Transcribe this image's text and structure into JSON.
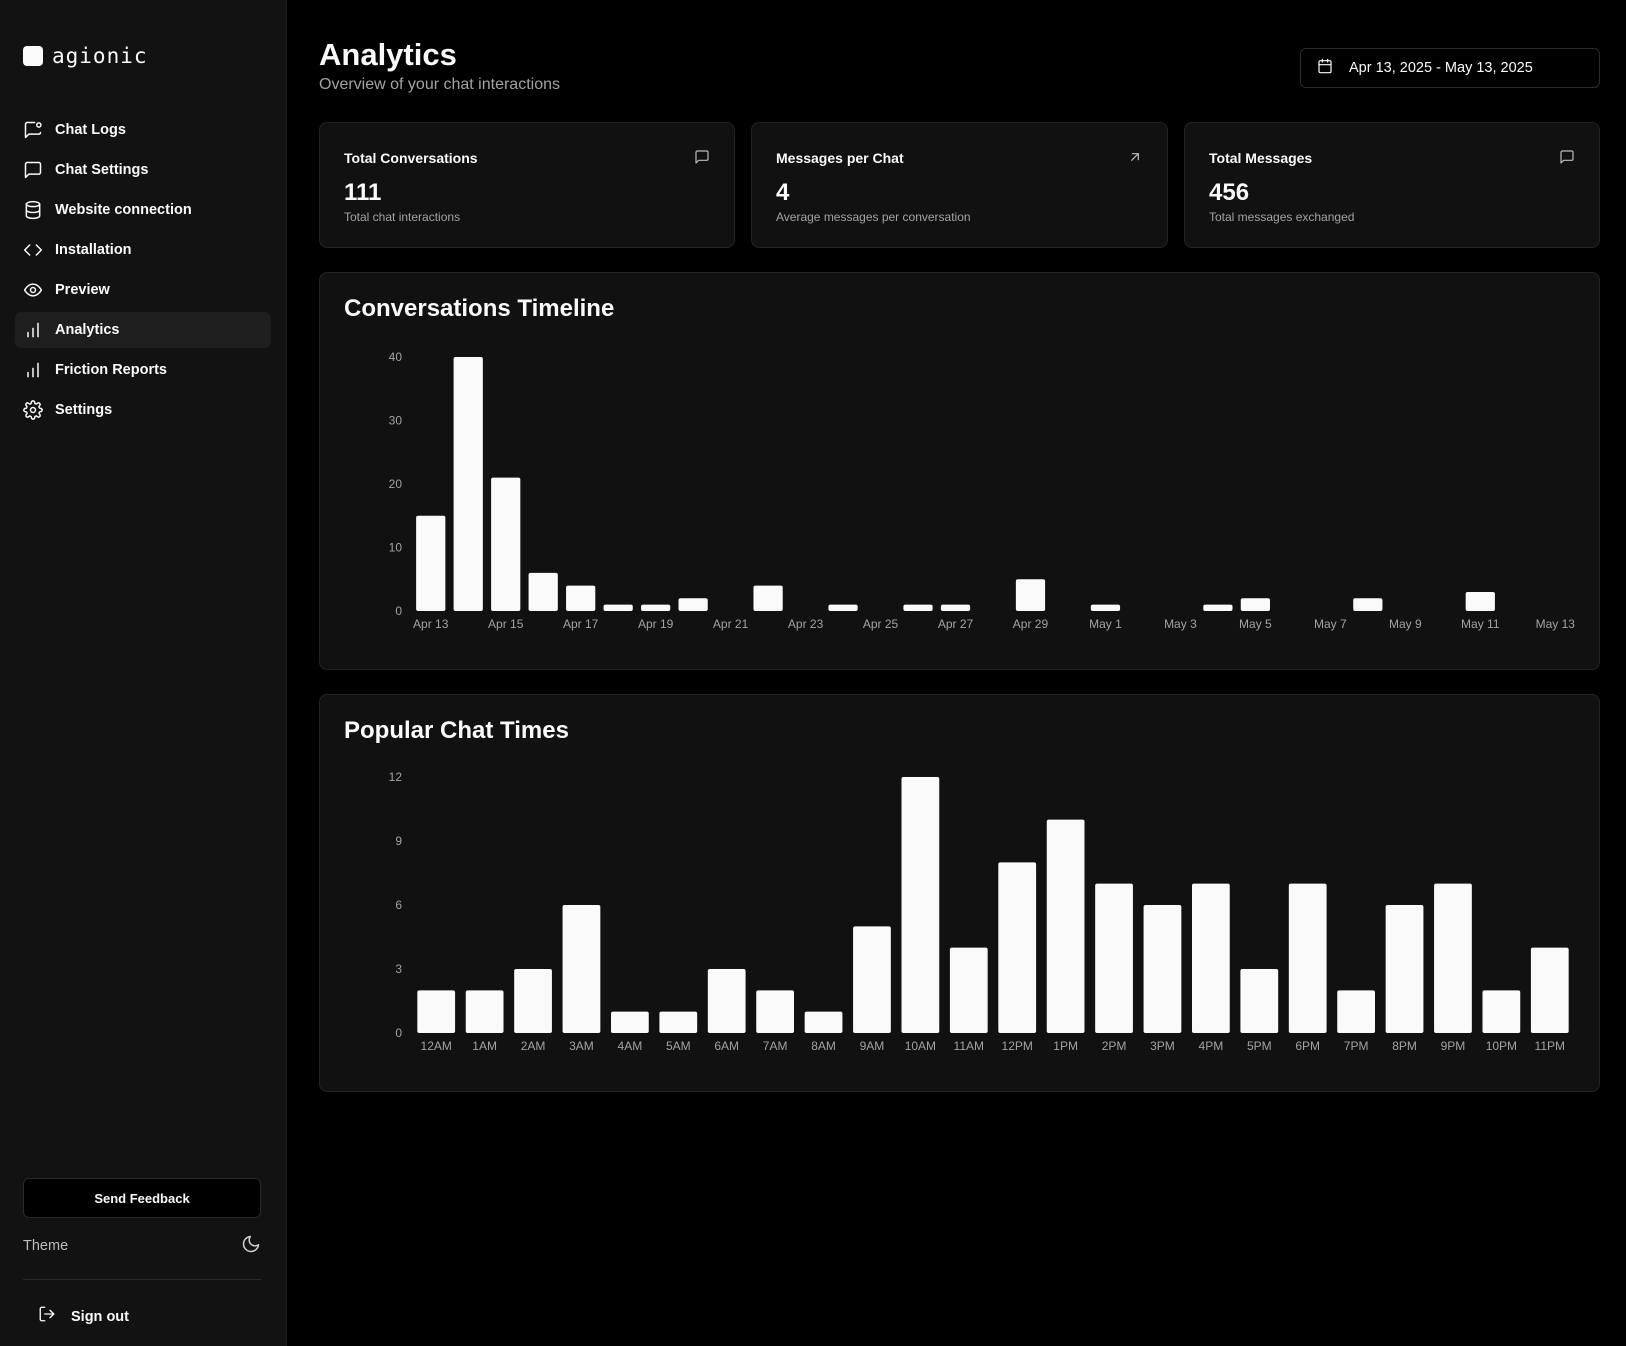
{
  "brand": {
    "name": "agionic"
  },
  "sidebar": {
    "items": [
      {
        "label": "Chat Logs",
        "icon": "chat-logs-icon",
        "active": false
      },
      {
        "label": "Chat Settings",
        "icon": "chat-settings-icon",
        "active": false
      },
      {
        "label": "Website connection",
        "icon": "database-icon",
        "active": false
      },
      {
        "label": "Installation",
        "icon": "code-icon",
        "active": false
      },
      {
        "label": "Preview",
        "icon": "eye-icon",
        "active": false
      },
      {
        "label": "Analytics",
        "icon": "bar-chart-icon",
        "active": true
      },
      {
        "label": "Friction Reports",
        "icon": "bar-chart-icon",
        "active": false
      },
      {
        "label": "Settings",
        "icon": "gear-icon",
        "active": false
      }
    ],
    "feedback_label": "Send Feedback",
    "theme_label": "Theme",
    "signout_label": "Sign out"
  },
  "header": {
    "title": "Analytics",
    "subtitle": "Overview of your chat interactions",
    "date_range": "Apr 13, 2025 - May 13, 2025"
  },
  "stats": [
    {
      "title": "Total Conversations",
      "value": "111",
      "description": "Total chat interactions",
      "icon": "message-square-icon"
    },
    {
      "title": "Messages per Chat",
      "value": "4",
      "description": "Average messages per conversation",
      "icon": "arrow-up-right-icon"
    },
    {
      "title": "Total Messages",
      "value": "456",
      "description": "Total messages exchanged",
      "icon": "message-square-icon"
    }
  ],
  "colors": {
    "background": "#000000",
    "card": "#111111",
    "sidebar": "#121212",
    "bar": "#fafafa",
    "muted_text": "#a3a3a3"
  },
  "chart_data": [
    {
      "type": "bar",
      "title": "Conversations Timeline",
      "categories": [
        "Apr 13",
        "Apr 14",
        "Apr 15",
        "Apr 16",
        "Apr 17",
        "Apr 18",
        "Apr 19",
        "Apr 20",
        "Apr 21",
        "Apr 22",
        "Apr 23",
        "Apr 24",
        "Apr 25",
        "Apr 26",
        "Apr 27",
        "Apr 28",
        "Apr 29",
        "Apr 30",
        "May 1",
        "May 2",
        "May 3",
        "May 4",
        "May 5",
        "May 6",
        "May 7",
        "May 8",
        "May 9",
        "May 10",
        "May 11",
        "May 12",
        "May 13"
      ],
      "x_tick_labels": [
        "Apr 13",
        "",
        "Apr 15",
        "",
        "Apr 17",
        "",
        "Apr 19",
        "",
        "Apr 21",
        "",
        "Apr 23",
        "",
        "Apr 25",
        "",
        "Apr 27",
        "",
        "Apr 29",
        "",
        "May 1",
        "",
        "May 3",
        "",
        "May 5",
        "",
        "May 7",
        "",
        "May 9",
        "",
        "May 11",
        "",
        "May 13"
      ],
      "values": [
        15,
        40,
        21,
        6,
        4,
        1,
        1,
        2,
        0,
        4,
        0,
        1,
        0,
        1,
        1,
        0,
        5,
        0,
        1,
        0,
        0,
        1,
        2,
        0,
        0,
        2,
        0,
        0,
        3,
        0,
        0
      ],
      "yticks": [
        0,
        10,
        20,
        30,
        40
      ],
      "ylim": [
        0,
        40
      ],
      "grid": false,
      "xlabel": "",
      "ylabel": ""
    },
    {
      "type": "bar",
      "title": "Popular Chat Times",
      "categories": [
        "12AM",
        "1AM",
        "2AM",
        "3AM",
        "4AM",
        "5AM",
        "6AM",
        "7AM",
        "8AM",
        "9AM",
        "10AM",
        "11AM",
        "12PM",
        "1PM",
        "2PM",
        "3PM",
        "4PM",
        "5PM",
        "6PM",
        "7PM",
        "8PM",
        "9PM",
        "10PM",
        "11PM"
      ],
      "x_tick_labels": [
        "12AM",
        "1AM",
        "2AM",
        "3AM",
        "4AM",
        "5AM",
        "6AM",
        "7AM",
        "8AM",
        "9AM",
        "10AM",
        "11AM",
        "12PM",
        "1PM",
        "2PM",
        "3PM",
        "4PM",
        "5PM",
        "6PM",
        "7PM",
        "8PM",
        "9PM",
        "10PM",
        "11PM"
      ],
      "values": [
        2,
        2,
        3,
        6,
        1,
        1,
        3,
        2,
        1,
        5,
        12,
        4,
        8,
        10,
        7,
        6,
        7,
        3,
        7,
        2,
        6,
        7,
        2,
        4
      ],
      "yticks": [
        0,
        3,
        6,
        9,
        12
      ],
      "ylim": [
        0,
        12
      ],
      "grid": false,
      "xlabel": "",
      "ylabel": ""
    }
  ]
}
